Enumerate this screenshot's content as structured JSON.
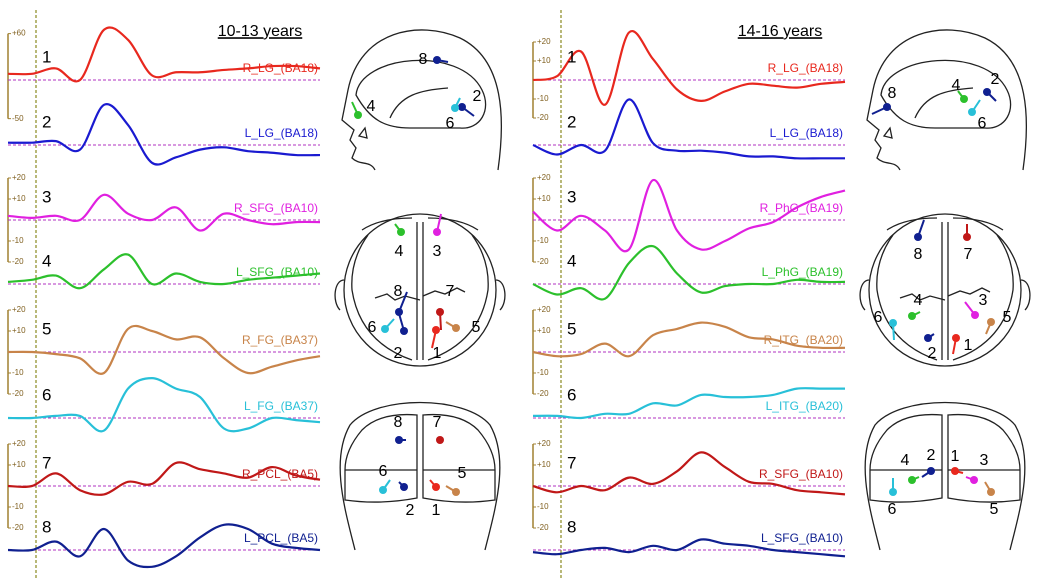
{
  "panels": [
    {
      "title": "10-13 years",
      "scales": [
        {
          "ticks": [
            {
              "value": 60,
              "label": "+60"
            },
            -50
          ]
        },
        {
          "ticks": [
            {
              "value": 20,
              "label": "+20"
            },
            {
              "value": 10,
              "label": "+10"
            },
            -10,
            -20
          ]
        },
        {
          "ticks": [
            {
              "value": 20,
              "label": "+20"
            },
            {
              "value": 10,
              "label": "+10"
            },
            -10,
            -20
          ]
        },
        {
          "ticks": [
            {
              "value": 20,
              "label": "+20"
            },
            {
              "value": 10,
              "label": "+10"
            },
            -10,
            -20
          ]
        }
      ],
      "traces": [
        {
          "number": "1",
          "region": "R_LG_(BA18)",
          "color": "#e8281e",
          "values": [
            8,
            8,
            15,
            0,
            65,
            52,
            6,
            10,
            10,
            13,
            15,
            18,
            18,
            15
          ]
        },
        {
          "number": "2",
          "region": "L_LG_(BA18)",
          "color": "#1a1ad0",
          "values": [
            3,
            3,
            5,
            -6,
            52,
            26,
            -23,
            -16,
            -6,
            -3,
            -8,
            -10,
            -13,
            -13
          ]
        },
        {
          "number": "3",
          "region": "R_SFG_(BA10)",
          "color": "#e020e0",
          "values": [
            2,
            1,
            2,
            0,
            12,
            3,
            0,
            6,
            -5,
            3,
            0,
            -2,
            -1,
            -1
          ]
        },
        {
          "number": "4",
          "region": "L_SFG_(BA10)",
          "color": "#2cc02c",
          "values": [
            1,
            2,
            4,
            -2,
            7,
            14,
            0,
            5,
            1,
            0,
            2,
            3,
            4,
            5
          ]
        },
        {
          "number": "5",
          "region": "R_FG_(BA37)",
          "color": "#c8844a",
          "values": [
            0,
            0,
            -1,
            -3,
            -10,
            11,
            10,
            6,
            7,
            -3,
            -10,
            -7,
            -4,
            -2
          ]
        },
        {
          "number": "6",
          "region": "L_FG_(BA37)",
          "color": "#28c0d8",
          "values": [
            0,
            0,
            1,
            1,
            -6,
            14,
            19,
            14,
            10,
            -5,
            -5,
            0,
            -1,
            -2
          ]
        },
        {
          "number": "7",
          "region": "R_PCL_(BA5)",
          "color": "#c01818",
          "values": [
            0,
            0,
            6,
            -2,
            -4,
            2,
            1,
            11,
            8,
            6,
            4,
            9,
            5,
            3
          ]
        },
        {
          "number": "8",
          "region": "L_PCL_(BA5)",
          "color": "#102090",
          "values": [
            0,
            0,
            4,
            -3,
            10,
            -5,
            -8,
            -3,
            6,
            12,
            10,
            3,
            1,
            0
          ]
        }
      ],
      "heads": [
        {
          "view": "side",
          "electrodes": [
            {
              "label": "8",
              "color": "#102090"
            },
            {
              "label": "4",
              "color": "#2cc02c"
            },
            {
              "label": "2",
              "color": "#102090"
            },
            {
              "label": "6",
              "color": "#28c0d8"
            }
          ]
        },
        {
          "view": "top",
          "electrodes": [
            {
              "label": "4",
              "color": "#2cc02c"
            },
            {
              "label": "3",
              "color": "#e020e0"
            },
            {
              "label": "8",
              "color": "#102090"
            },
            {
              "label": "7",
              "color": "#c01818"
            },
            {
              "label": "6",
              "color": "#28c0d8"
            },
            {
              "label": "5",
              "color": "#c8844a"
            },
            {
              "label": "2",
              "color": "#102090"
            },
            {
              "label": "1",
              "color": "#e8281e"
            }
          ]
        },
        {
          "view": "back",
          "electrodes": [
            {
              "label": "8",
              "color": "#102090"
            },
            {
              "label": "7",
              "color": "#c01818"
            },
            {
              "label": "6",
              "color": "#28c0d8"
            },
            {
              "label": "5",
              "color": "#c8844a"
            },
            {
              "label": "2",
              "color": "#102090"
            },
            {
              "label": "1",
              "color": "#e8281e"
            }
          ]
        }
      ]
    },
    {
      "title": "14-16 years",
      "scales": [
        {
          "ticks": [
            {
              "value": 20,
              "label": "+20"
            },
            {
              "value": 10,
              "label": "+10"
            },
            -10,
            -20
          ]
        },
        {
          "ticks": [
            {
              "value": 20,
              "label": "+20"
            },
            {
              "value": 10,
              "label": "+10"
            },
            -10,
            -20
          ]
        },
        {
          "ticks": [
            {
              "value": 20,
              "label": "+20"
            },
            {
              "value": 10,
              "label": "+10"
            },
            -10,
            -20
          ]
        },
        {
          "ticks": [
            {
              "value": 20,
              "label": "+20"
            },
            {
              "value": 10,
              "label": "+10"
            },
            -10,
            -20
          ]
        }
      ],
      "traces": [
        {
          "number": "1",
          "region": "R_LG_(BA18)",
          "color": "#e8281e",
          "values": [
            0,
            2,
            15,
            -13,
            25,
            11,
            -5,
            -11,
            -6,
            -2,
            -3,
            -4,
            -2,
            -1
          ]
        },
        {
          "number": "2",
          "region": "L_LG_(BA18)",
          "color": "#1a1ad0",
          "values": [
            0,
            -5,
            0,
            -3,
            24,
            1,
            -3,
            -3,
            -4,
            -6,
            -6,
            -7,
            -7,
            -7
          ]
        },
        {
          "number": "3",
          "region": "R_PhG_(BA19)",
          "color": "#e020e0",
          "values": [
            4,
            -5,
            2,
            -5,
            -14,
            19,
            -5,
            -14,
            -10,
            -4,
            -1,
            6,
            11,
            14
          ]
        },
        {
          "number": "4",
          "region": "L_PhG_(BA19)",
          "color": "#2cc02c",
          "values": [
            0,
            -5,
            -2,
            -7,
            10,
            18,
            5,
            -4,
            -1,
            0,
            0,
            2,
            1,
            1
          ]
        },
        {
          "number": "5",
          "region": "R_ITG_(BA20)",
          "color": "#c8844a",
          "values": [
            0,
            -2,
            -1,
            4,
            -2,
            8,
            11,
            14,
            12,
            7,
            6,
            3,
            2,
            2
          ]
        },
        {
          "number": "6",
          "region": "L_ITG_(BA20)",
          "color": "#28c0d8",
          "values": [
            1,
            1,
            0,
            2,
            2,
            7,
            6,
            11,
            10,
            10,
            11,
            14,
            14,
            14
          ]
        },
        {
          "number": "7",
          "region": "R_SFG_(BA10)",
          "color": "#c01818",
          "values": [
            0,
            -3,
            0,
            -2,
            4,
            1,
            7,
            16,
            9,
            2,
            1,
            -2,
            -3,
            -4
          ]
        },
        {
          "number": "8",
          "region": "L_SFG_(BA10)",
          "color": "#102090",
          "values": [
            -1,
            -2,
            0,
            1,
            -1,
            2,
            0,
            5,
            3,
            2,
            0,
            -1,
            -2,
            -3
          ]
        }
      ],
      "heads": [
        {
          "view": "side",
          "electrodes": [
            {
              "label": "8",
              "color": "#102090"
            },
            {
              "label": "4",
              "color": "#2cc02c"
            },
            {
              "label": "2",
              "color": "#102090"
            },
            {
              "label": "6",
              "color": "#28c0d8"
            }
          ]
        },
        {
          "view": "top",
          "electrodes": [
            {
              "label": "8",
              "color": "#102090"
            },
            {
              "label": "7",
              "color": "#c01818"
            },
            {
              "label": "4",
              "color": "#2cc02c"
            },
            {
              "label": "3",
              "color": "#e020e0"
            },
            {
              "label": "6",
              "color": "#28c0d8"
            },
            {
              "label": "5",
              "color": "#c8844a"
            },
            {
              "label": "2",
              "color": "#102090"
            },
            {
              "label": "1",
              "color": "#e8281e"
            }
          ]
        },
        {
          "view": "back",
          "electrodes": [
            {
              "label": "4",
              "color": "#2cc02c"
            },
            {
              "label": "2",
              "color": "#102090"
            },
            {
              "label": "1",
              "color": "#e8281e"
            },
            {
              "label": "3",
              "color": "#e020e0"
            },
            {
              "label": "6",
              "color": "#28c0d8"
            },
            {
              "label": "5",
              "color": "#c8844a"
            }
          ]
        }
      ]
    }
  ]
}
